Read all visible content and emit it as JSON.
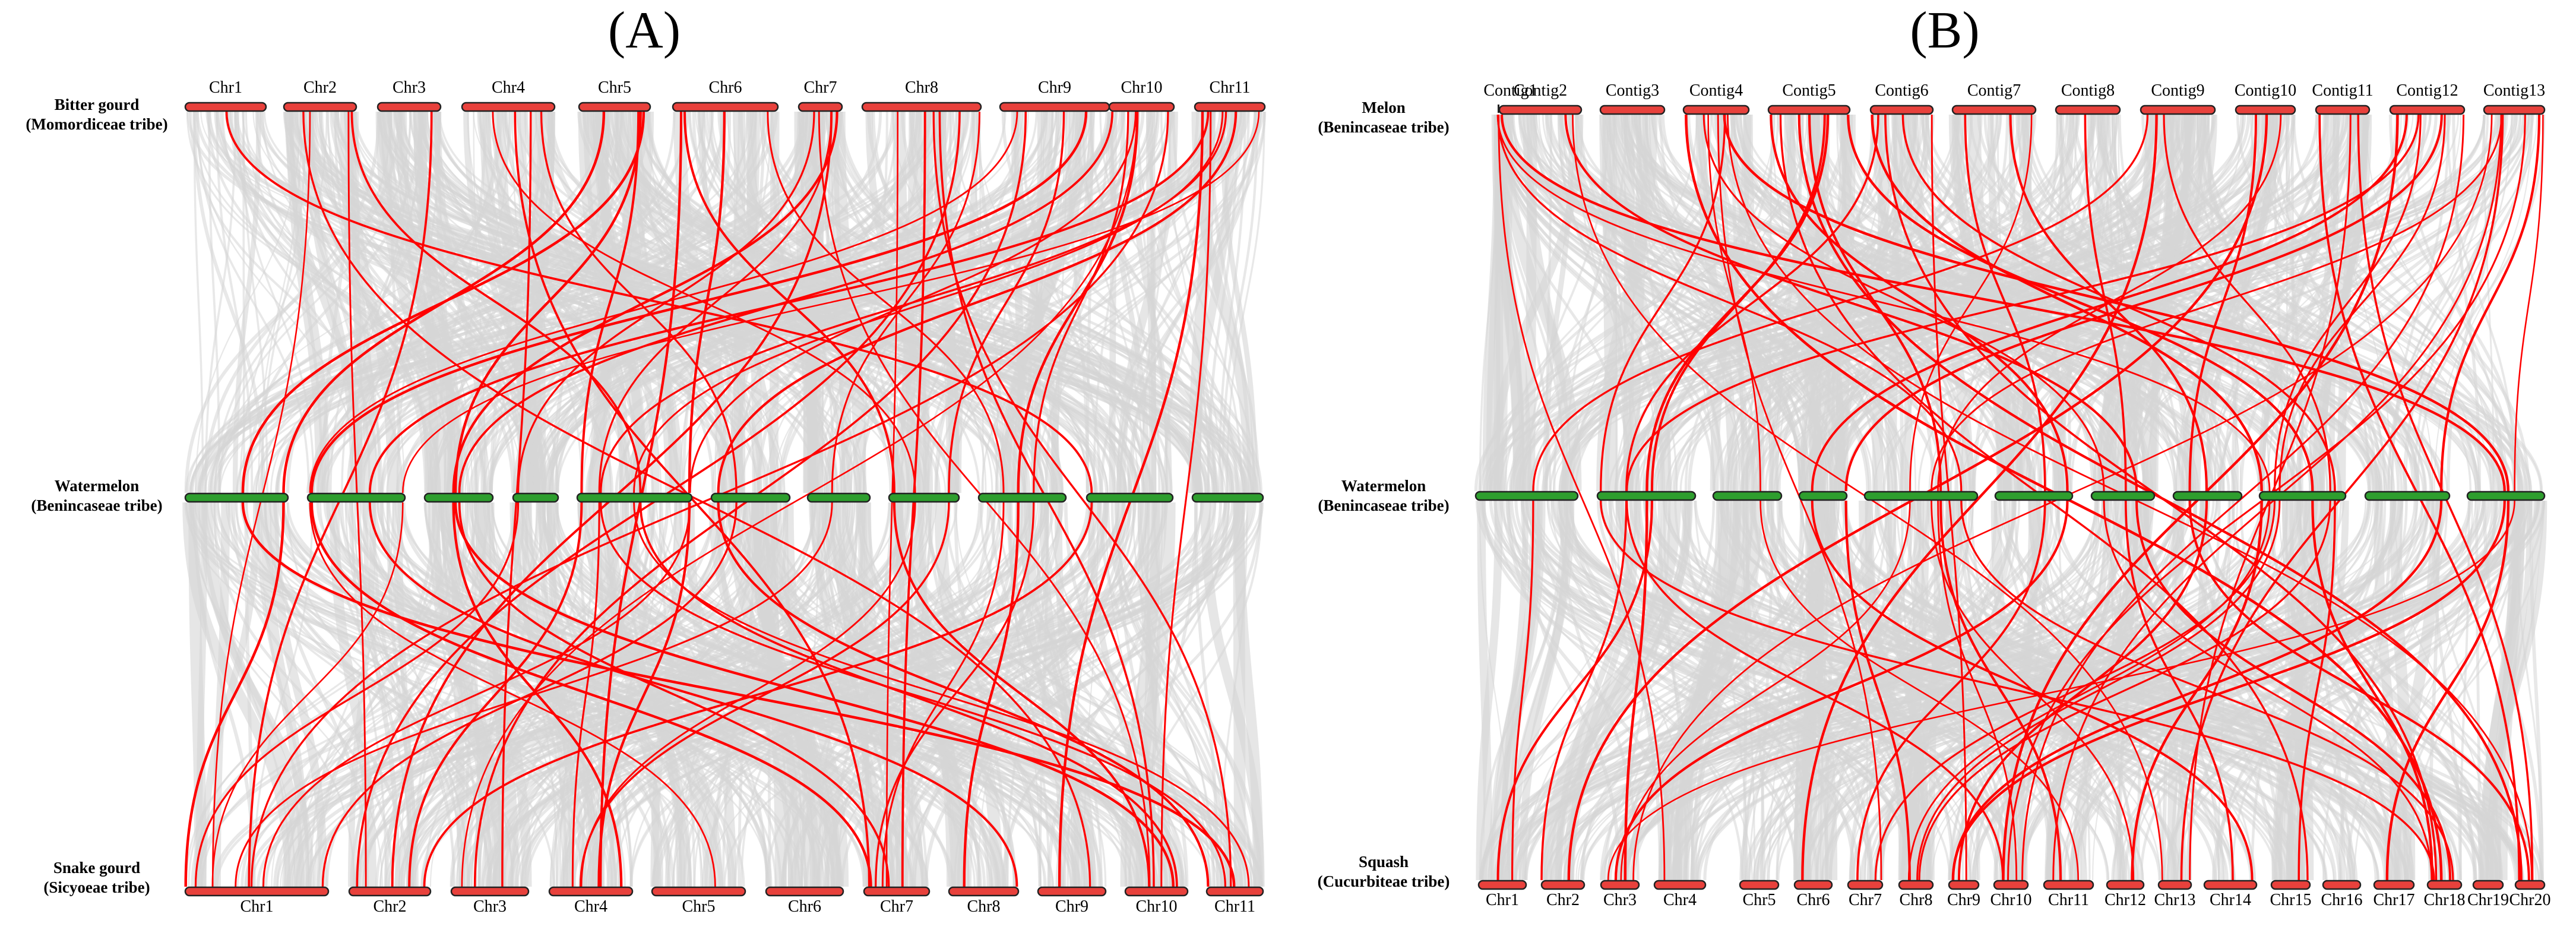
{
  "colors": {
    "background": "#ffffff",
    "grey_links": "#d6d6d6",
    "red_links": "#ff0000",
    "red_bar": "#e8413c",
    "green_bar": "#2e9e2e",
    "bar_outline": "#222222",
    "text": "#000000"
  },
  "panels": [
    {
      "letter": "(A)",
      "tracks": [
        {
          "species": "Bitter gourd",
          "tribe": "(Momordiceae tribe)",
          "color": "red",
          "labels_above": true,
          "chromosomes": [
            "Chr1",
            "Chr2",
            "Chr3",
            "Chr4",
            "Chr5",
            "Chr6",
            "Chr7",
            "Chr8",
            "Chr9",
            "Chr10",
            "Chr11"
          ]
        },
        {
          "species": "Watermelon",
          "tribe": "(Benincaseae tribe)",
          "color": "green",
          "labels_above": false,
          "chromosomes": [
            "",
            "",
            "",
            "",
            "",
            "",
            "",
            "",
            "",
            "",
            ""
          ]
        },
        {
          "species": "Snake gourd",
          "tribe": "(Sicyoeae tribe)",
          "color": "red",
          "labels_above": false,
          "chromosomes": [
            "Chr1",
            "Chr2",
            "Chr3",
            "Chr4",
            "Chr5",
            "Chr6",
            "Chr7",
            "Chr8",
            "Chr9",
            "Chr10",
            "Chr11"
          ]
        }
      ]
    },
    {
      "letter": "(B)",
      "tracks": [
        {
          "species": "Melon",
          "tribe": "(Benincaseae tribe)",
          "color": "red",
          "labels_above": true,
          "chromosomes": [
            "Contig1",
            "Contig2",
            "Contig3",
            "Contig4",
            "Contig5",
            "Contig6",
            "Contig7",
            "Contig8",
            "Contig9",
            "Contig10",
            "Contig11",
            "Contig12",
            "Contig13"
          ]
        },
        {
          "species": "Watermelon",
          "tribe": "(Benincaseae tribe)",
          "color": "green",
          "labels_above": false,
          "chromosomes": [
            "",
            "",
            "",
            "",
            "",
            "",
            "",
            "",
            "",
            "",
            ""
          ]
        },
        {
          "species": "Squash",
          "tribe": "(Cucurbiteae tribe)",
          "color": "red",
          "labels_above": false,
          "chromosomes": [
            "Chr1",
            "Chr2",
            "Chr3",
            "Chr4",
            "Chr5",
            "Chr6",
            "Chr7",
            "Chr8",
            "Chr9",
            "Chr10",
            "Chr11",
            "Chr12",
            "Chr13",
            "Chr14",
            "Chr15",
            "Chr16",
            "Chr17",
            "Chr18",
            "Chr19",
            "Chr20"
          ]
        }
      ]
    }
  ]
}
